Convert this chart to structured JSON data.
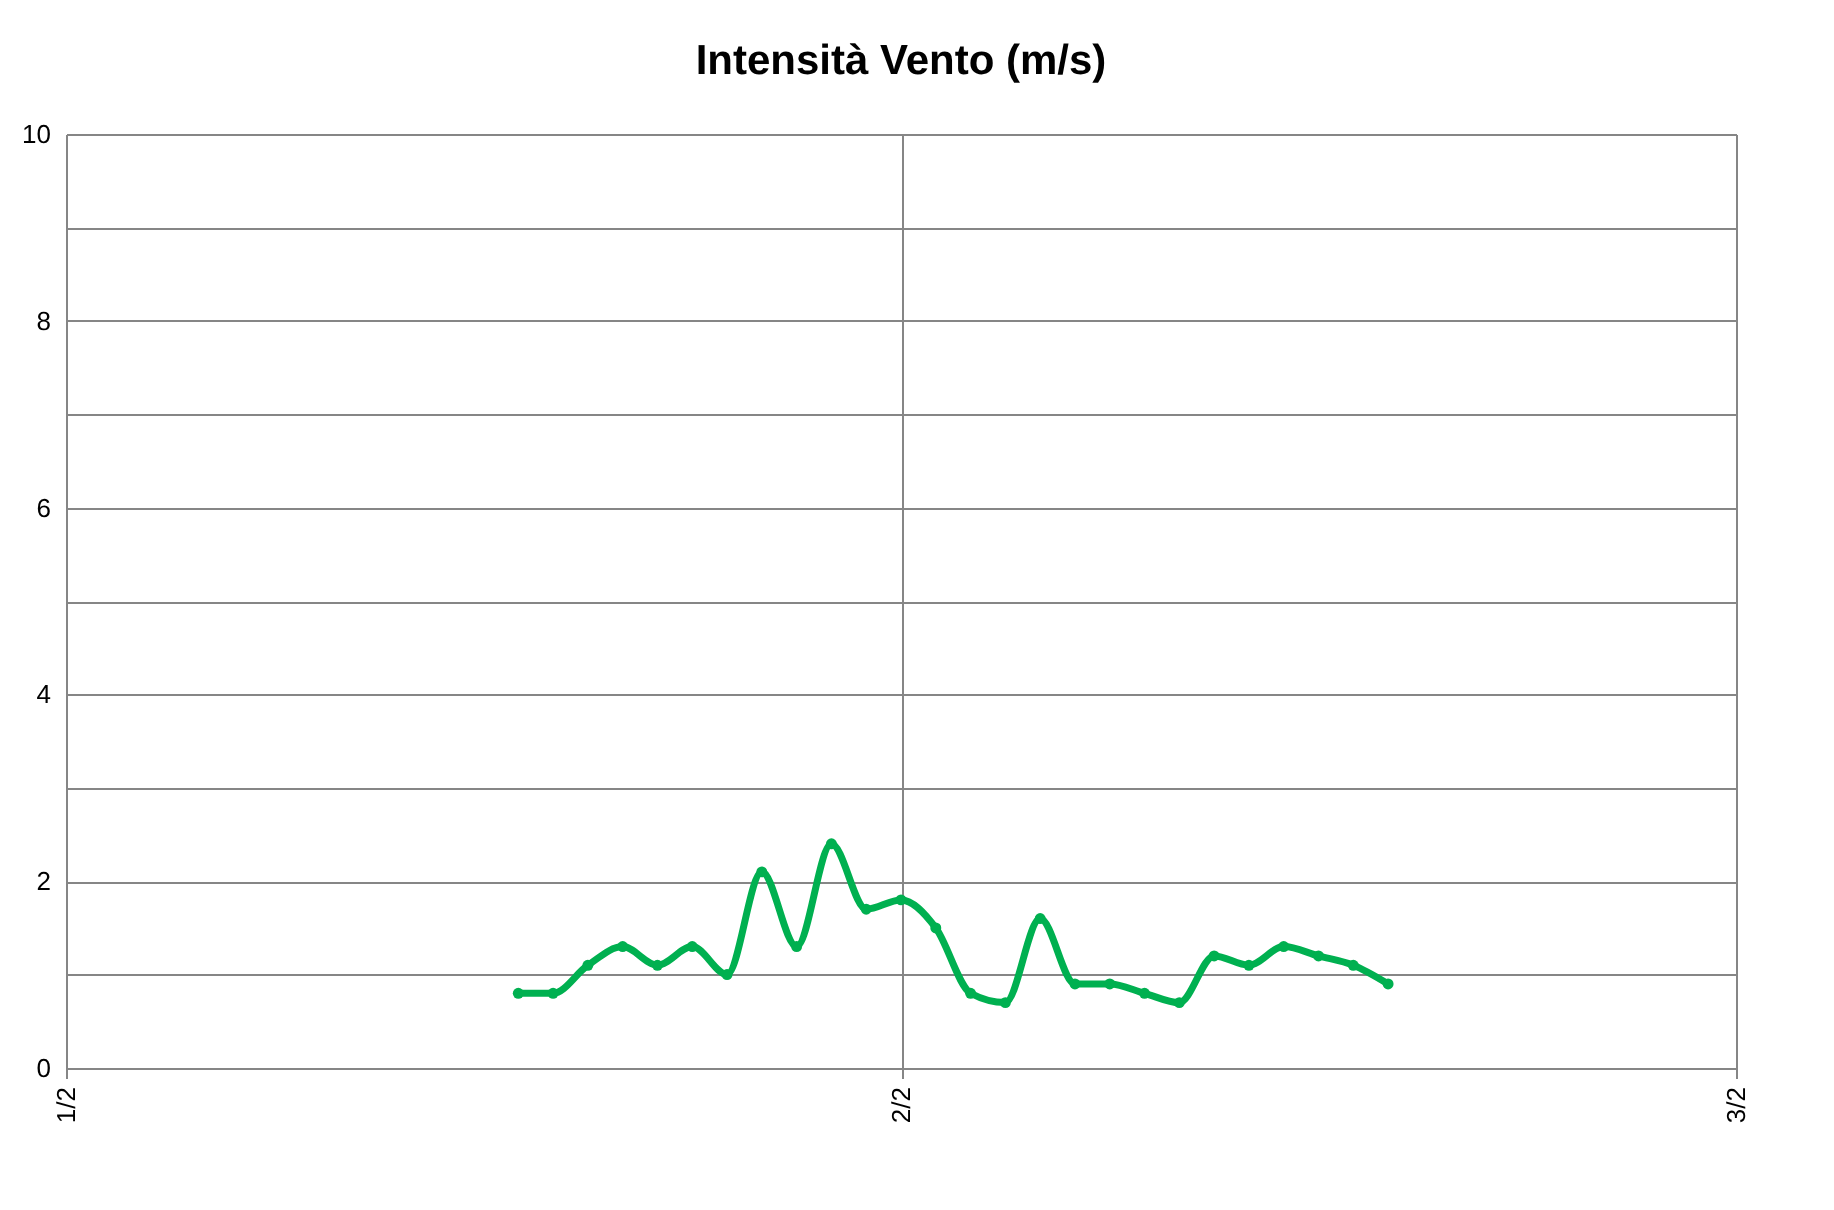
{
  "chart_data": {
    "type": "line",
    "title": "Intensità Vento (m/s)",
    "x": [
      "--02-01T13:00",
      "--02-01T14:00",
      "--02-01T15:00",
      "--02-01T16:00",
      "--02-01T17:00",
      "--02-01T18:00",
      "--02-01T19:00",
      "--02-01T20:00",
      "--02-01T21:00",
      "--02-01T22:00",
      "--02-01T23:00",
      "--02-02T00:00",
      "--02-02T01:00",
      "--02-02T02:00",
      "--02-02T03:00",
      "--02-02T04:00",
      "--02-02T05:00",
      "--02-02T06:00",
      "--02-02T07:00",
      "--02-02T08:00",
      "--02-02T09:00",
      "--02-02T10:00",
      "--02-02T11:00",
      "--02-02T12:00",
      "--02-02T13:00",
      "--02-02T14:00"
    ],
    "series": [
      {
        "color": "#00b050",
        "values": [
          0.8,
          0.8,
          1.1,
          1.3,
          1.1,
          1.3,
          1.0,
          2.1,
          1.3,
          2.4,
          1.7,
          1.8,
          1.5,
          0.8,
          0.7,
          1.6,
          0.9,
          0.9,
          0.8,
          0.7,
          1.2,
          1.1,
          1.3,
          1.2,
          1.1,
          0.9
        ]
      }
    ],
    "xlim": [
      "--02-01",
      "--02-03"
    ],
    "xticks": [
      {
        "value": "--02-01",
        "label": "1/2"
      },
      {
        "value": "--02-02",
        "label": "2/2"
      },
      {
        "value": "--02-03",
        "label": "3/2"
      }
    ],
    "ylim": [
      0,
      10
    ],
    "yticks": [
      0,
      {
        "value": 1,
        "label": null
      },
      2,
      {
        "value": 3,
        "label": null
      },
      4,
      {
        "value": 5,
        "label": null
      },
      6,
      {
        "value": 7,
        "label": null
      },
      8,
      {
        "value": 9,
        "label": null
      },
      10
    ],
    "grid": true,
    "marker": "circle",
    "line_style": "solid"
  }
}
